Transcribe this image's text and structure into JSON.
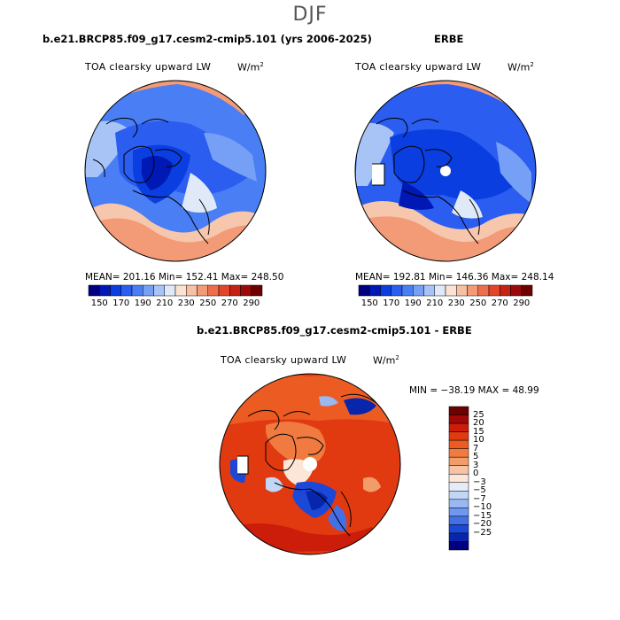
{
  "season": "DJF",
  "panels": [
    {
      "title": "b.e21.BRCP85.f09_g17.cesm2-cmip5.101 (yrs 2006-2025)",
      "variable": "TOA clearsky upward LW",
      "units": "W/m",
      "units_exp": "2",
      "stats": "MEAN= 201.16   Min= 152.41   Max= 248.50"
    },
    {
      "title": "ERBE",
      "variable": "TOA clearsky upward LW",
      "units": "W/m",
      "units_exp": "2",
      "stats": "MEAN= 192.81   Min= 146.36   Max= 248.14"
    },
    {
      "title": "b.e21.BRCP85.f09_g17.cesm2-cmip5.101 - ERBE",
      "variable": "TOA clearsky upward LW",
      "units": "W/m",
      "units_exp": "2",
      "stats": "MIN = −38.19  MAX =  48.99"
    }
  ],
  "colorbar_abs": {
    "colors": [
      "#000080",
      "#0018b4",
      "#0b3ee0",
      "#2a5df0",
      "#4a7ef5",
      "#76a0f6",
      "#a8c4f7",
      "#dfe9f7",
      "#fbe2d2",
      "#f7c0a4",
      "#f49a77",
      "#ee6e4a",
      "#e2452a",
      "#c52215",
      "#9a0a08",
      "#6e0000"
    ],
    "labels": [
      "150",
      "170",
      "190",
      "210",
      "230",
      "250",
      "270",
      "290"
    ]
  },
  "colorbar_diff": {
    "colors": [
      "#6e0000",
      "#a30808",
      "#cc1c0a",
      "#e23a10",
      "#ec5b22",
      "#f07a40",
      "#f29c6a",
      "#f6c4a4",
      "#fbe6d8",
      "#e4ecfa",
      "#c2d6f6",
      "#98b9f2",
      "#6e97ee",
      "#4470e6",
      "#1c48d8",
      "#0726ac",
      "#000080"
    ],
    "labels": [
      "25",
      "20",
      "15",
      "10",
      "7",
      "5",
      "3",
      "0",
      "−3",
      "−5",
      "−7",
      "−10",
      "−15",
      "−20",
      "−25"
    ]
  }
}
